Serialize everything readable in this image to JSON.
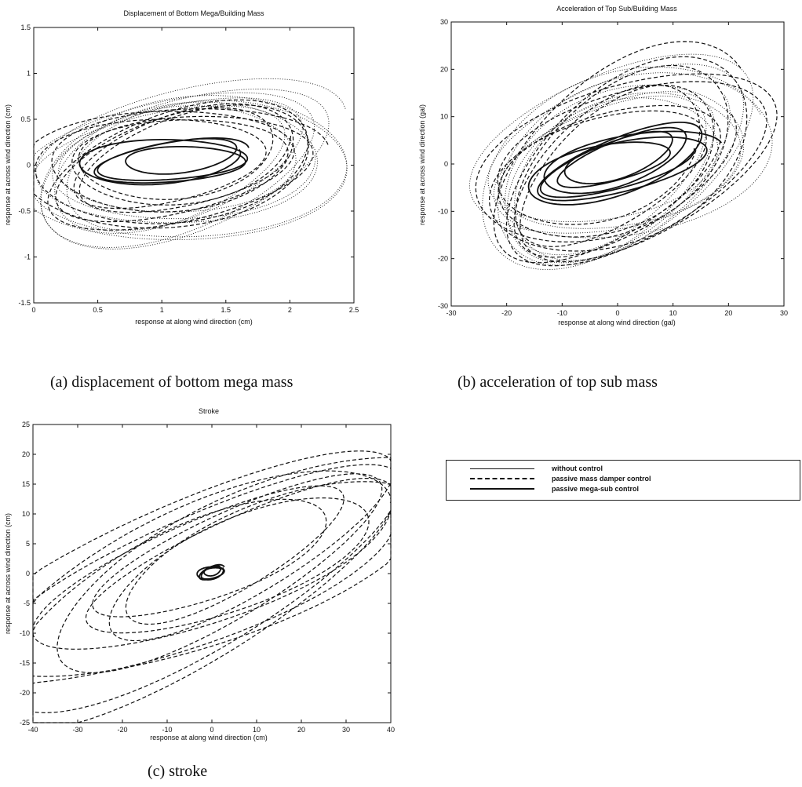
{
  "captions": {
    "a": "(a)  displacement of bottom mega mass",
    "b": "(b)  acceleration of top sub mass",
    "c": "(c)  stroke"
  },
  "legend": [
    {
      "label": "without control",
      "style": "solid"
    },
    {
      "label": "passive mass damper control",
      "style": "dashed"
    },
    {
      "label": "passive mega-sub control",
      "style": "solid"
    }
  ],
  "chart_data": [
    {
      "type": "line",
      "title": "Displacement of Bottom Mega/Building Mass",
      "xlabel": "response at along wind direction (cm)",
      "ylabel": "response at across wind direction (cm)",
      "xlim": [
        0,
        2.5
      ],
      "ylim": [
        -1.5,
        1.5
      ],
      "xticks": [
        0,
        0.5,
        1,
        1.5,
        2,
        2.5
      ],
      "xtick_labels": [
        "0",
        "0.5",
        "1",
        "1.5",
        "2",
        "2.5"
      ],
      "yticks": [
        -1.5,
        -1,
        -0.5,
        0,
        0.5,
        1,
        1.5
      ],
      "ytick_labels": [
        "-1.5",
        "-1",
        "-0.5",
        "0",
        "0.5",
        "1",
        "1.5"
      ],
      "grid": false,
      "series": [
        {
          "style": "dotted",
          "cx": 1.15,
          "cy": -0.02,
          "rx": 1.1,
          "ry": 0.7,
          "angle": 14,
          "loops": 9,
          "spread": 0.25,
          "seed": 11
        },
        {
          "style": "dashed",
          "cx": 1.1,
          "cy": 0.02,
          "rx": 0.95,
          "ry": 0.55,
          "angle": 12,
          "loops": 9,
          "spread": 0.3,
          "seed": 23
        },
        {
          "style": "solid",
          "cx": 1.08,
          "cy": 0.05,
          "rx": 0.55,
          "ry": 0.2,
          "angle": 6,
          "loops": 4,
          "spread": 0.35,
          "seed": 37
        }
      ]
    },
    {
      "type": "line",
      "title": "Acceleration of Top Sub/Building Mass",
      "xlabel": "response at along wind direction  (gal)",
      "ylabel": "response at across wind direction  (gal)",
      "xlim": [
        -30,
        30
      ],
      "ylim": [
        -30,
        30
      ],
      "xticks": [
        -30,
        -20,
        -10,
        0,
        10,
        20,
        30
      ],
      "xtick_labels": [
        "-30",
        "-20",
        "-10",
        "0",
        "10",
        "20",
        "30"
      ],
      "yticks": [
        -30,
        -20,
        -10,
        0,
        10,
        20,
        30
      ],
      "ytick_labels": [
        "-30",
        "-20",
        "-10",
        "0",
        "10",
        "20",
        "30"
      ],
      "grid": false,
      "series": [
        {
          "style": "dotted",
          "cx": 0,
          "cy": 0,
          "rx": 24,
          "ry": 15,
          "angle": 30,
          "loops": 9,
          "spread": 0.25,
          "seed": 41
        },
        {
          "style": "dashed",
          "cx": 0,
          "cy": 0,
          "rx": 24,
          "ry": 14,
          "angle": 35,
          "loops": 9,
          "spread": 0.3,
          "seed": 53
        },
        {
          "style": "solid",
          "cx": 0,
          "cy": 0,
          "rx": 14,
          "ry": 5,
          "angle": 20,
          "loops": 6,
          "spread": 0.4,
          "seed": 67
        }
      ]
    },
    {
      "type": "line",
      "title": "Stroke",
      "xlabel": "response at along wind direction (cm)",
      "ylabel": "response at across wind direction (cm)",
      "xlim": [
        -40,
        40
      ],
      "ylim": [
        -25,
        25
      ],
      "xticks": [
        -40,
        -30,
        -20,
        -10,
        0,
        10,
        20,
        30,
        40
      ],
      "xtick_labels": [
        "-40",
        "-30",
        "-20",
        "-10",
        "0",
        "10",
        "20",
        "30",
        "40"
      ],
      "yticks": [
        -25,
        -20,
        -15,
        -10,
        -5,
        0,
        5,
        10,
        15,
        20,
        25
      ],
      "ytick_labels": [
        "-25",
        "-20",
        "-15",
        "-10",
        "-5",
        "0",
        "5",
        "10",
        "15",
        "20",
        "25"
      ],
      "grid": false,
      "series": [
        {
          "style": "dashed",
          "cx": 0,
          "cy": 0,
          "rx": 43,
          "ry": 9,
          "angle": 30,
          "loops": 10,
          "spread": 0.55,
          "seed": 79
        },
        {
          "style": "solid",
          "cx": 0,
          "cy": 0.2,
          "rx": 2.6,
          "ry": 0.9,
          "angle": 20,
          "loops": 4,
          "spread": 0.4,
          "seed": 91
        }
      ]
    }
  ]
}
